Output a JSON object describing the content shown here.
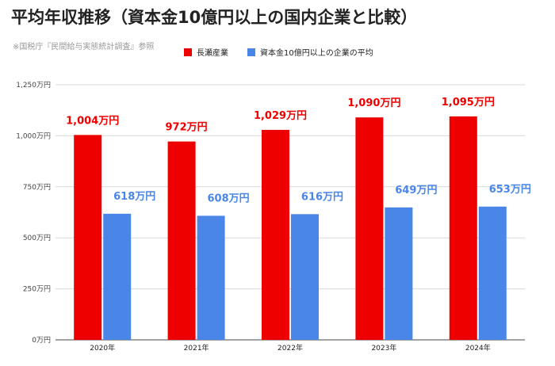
{
  "title": "平均年収推移（資本金10億円以上の国内企業と比較）",
  "source": "※国税庁『民間給与実態統計調査』参照",
  "chart_data": {
    "type": "bar",
    "categories": [
      "2020年",
      "2021年",
      "2022年",
      "2023年",
      "2024年"
    ],
    "series": [
      {
        "name": "長瀬産業",
        "values": [
          1004,
          972,
          1029,
          1090,
          1095
        ],
        "labels": [
          "1,004万円",
          "972万円",
          "1,029万円",
          "1,090万円",
          "1,095万円"
        ],
        "color": "#ee0000"
      },
      {
        "name": "資本金10億円以上の企業の平均",
        "values": [
          618,
          608,
          616,
          649,
          653
        ],
        "labels": [
          "618万円",
          "608万円",
          "616万円",
          "649万円",
          "653万円"
        ],
        "color": "#4a86e8"
      }
    ],
    "ylim": [
      0,
      1250
    ],
    "yticks": [
      0,
      250,
      500,
      750,
      1000,
      1250
    ],
    "ytick_labels": [
      "0万円",
      "250万円",
      "500万円",
      "750万円",
      "1,000万円",
      "1,250万円"
    ],
    "grid": true,
    "legend_position": "top"
  }
}
